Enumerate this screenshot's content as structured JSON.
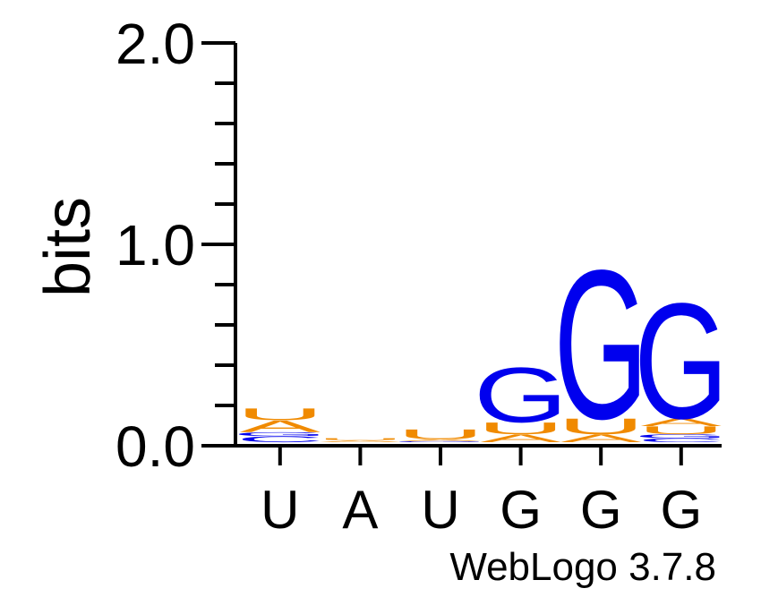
{
  "chart_data": {
    "type": "sequence-logo",
    "ylabel": "bits",
    "ylim": [
      0,
      2
    ],
    "y_ticks": [
      "0.0",
      "1.0",
      "2.0"
    ],
    "x_tick_labels": [
      "U",
      "A",
      "U",
      "G",
      "G",
      "G"
    ],
    "footer": "WebLogo 3.7.8",
    "colors": {
      "G": "#0000ee",
      "C": "#0000ee",
      "A": "#f08a00",
      "U": "#f08a00"
    },
    "positions": [
      {
        "label": "U",
        "stack": [
          {
            "letter": "C",
            "bits": 0.03
          },
          {
            "letter": "G",
            "bits": 0.02
          },
          {
            "letter": "A",
            "bits": 0.06
          },
          {
            "letter": "U",
            "bits": 0.06
          }
        ]
      },
      {
        "label": "A",
        "stack": [
          {
            "letter": "A",
            "bits": 0.01
          },
          {
            "letter": "U",
            "bits": 0.01
          }
        ]
      },
      {
        "label": "U",
        "stack": [
          {
            "letter": "G",
            "bits": 0.005
          },
          {
            "letter": "A",
            "bits": 0.01
          },
          {
            "letter": "U",
            "bits": 0.05
          }
        ]
      },
      {
        "label": "G",
        "stack": [
          {
            "letter": "A",
            "bits": 0.04
          },
          {
            "letter": "U",
            "bits": 0.06
          },
          {
            "letter": "G",
            "bits": 0.28
          }
        ]
      },
      {
        "label": "G",
        "stack": [
          {
            "letter": "A",
            "bits": 0.04
          },
          {
            "letter": "U",
            "bits": 0.08
          },
          {
            "letter": "G",
            "bits": 0.76
          }
        ]
      },
      {
        "label": "G",
        "stack": [
          {
            "letter": "C",
            "bits": 0.02
          },
          {
            "letter": "G",
            "bits": 0.02
          },
          {
            "letter": "U",
            "bits": 0.04
          },
          {
            "letter": "A",
            "bits": 0.04
          },
          {
            "letter": "G",
            "bits": 0.59
          }
        ]
      }
    ]
  }
}
